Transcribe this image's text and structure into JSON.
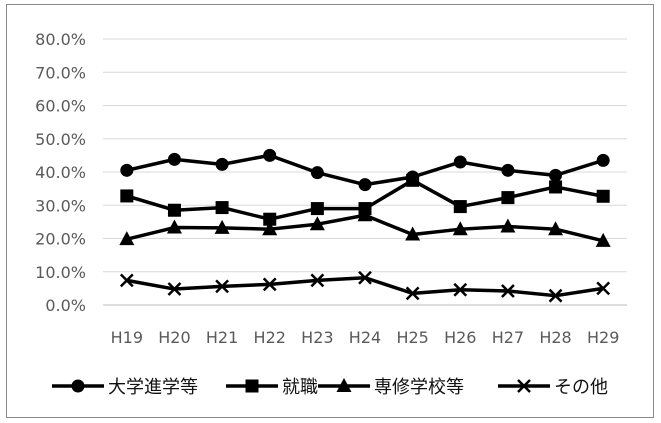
{
  "chart_data": {
    "type": "line",
    "title": "",
    "xlabel": "",
    "ylabel": "",
    "categories": [
      "H19",
      "H20",
      "H21",
      "H22",
      "H23",
      "H24",
      "H25",
      "H26",
      "H27",
      "H28",
      "H29"
    ],
    "y_tick_labels": [
      "0.0%",
      "10.0%",
      "20.0%",
      "30.0%",
      "40.0%",
      "50.0%",
      "60.0%",
      "70.0%",
      "80.0%"
    ],
    "ylim": [
      0,
      80
    ],
    "grid": true,
    "legend_position": "bottom",
    "series": [
      {
        "name": "大学進学等",
        "marker": "circle",
        "values": [
          40.5,
          43.8,
          42.3,
          45.0,
          39.8,
          36.2,
          38.5,
          43.0,
          40.5,
          39.0,
          43.5
        ]
      },
      {
        "name": "就職",
        "marker": "square",
        "values": [
          32.8,
          28.5,
          29.3,
          25.8,
          29.0,
          29.0,
          37.5,
          29.6,
          32.3,
          35.5,
          32.7
        ]
      },
      {
        "name": "専修学校等",
        "marker": "triangle",
        "values": [
          19.8,
          23.3,
          23.2,
          22.8,
          24.3,
          27.0,
          21.2,
          22.8,
          23.6,
          22.8,
          19.3
        ]
      },
      {
        "name": "その他",
        "marker": "x",
        "values": [
          7.4,
          4.8,
          5.6,
          6.2,
          7.4,
          8.2,
          3.5,
          4.6,
          4.2,
          2.8,
          5.0
        ]
      }
    ],
    "line_color": "#000000",
    "grid_color": "#d9d9d9"
  }
}
